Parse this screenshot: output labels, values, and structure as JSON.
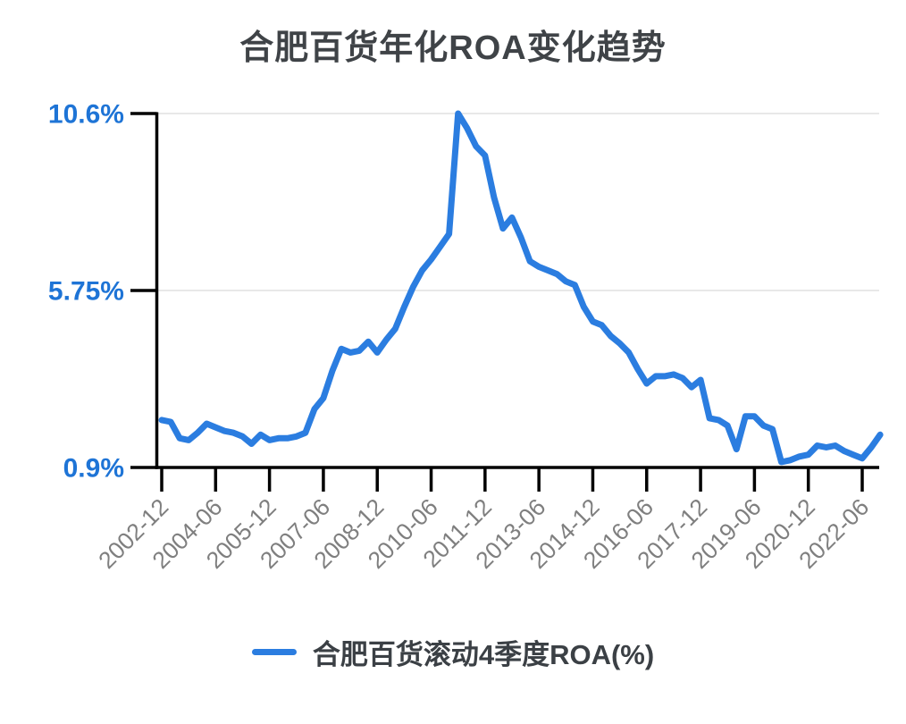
{
  "page": {
    "title": "合肥百货年化ROA变化趋势"
  },
  "legend": {
    "label": "合肥百货滚动4季度ROA(%)"
  },
  "colors": {
    "line_blue": "#2b7de0",
    "y_label_blue": "#1e74d6",
    "title_gray": "#3f4347",
    "x_label_gray": "#7f7f7f",
    "axis_black": "#000000",
    "gridline_gray": "#e8e8e8"
  },
  "chart_data": {
    "type": "line",
    "title": "合肥百货年化ROA变化趋势",
    "series_name": "合肥百货滚动4季度ROA(%)",
    "unit": "%",
    "grid": "horizontal gridlines at the 5.75% and 10.6% levels only",
    "legend_position": "bottom-center",
    "ylim": [
      0.9,
      10.6
    ],
    "y_tick_values": [
      10.6,
      5.75,
      0.9
    ],
    "y_tick_labels": [
      "10.6%",
      "5.75%",
      "0.9%"
    ],
    "x_tick_labels": [
      "2002-12",
      "2004-06",
      "2005-12",
      "2007-06",
      "2008-12",
      "2010-06",
      "2011-12",
      "2013-06",
      "2014-12",
      "2016-06",
      "2017-12",
      "2019-06",
      "2020-12",
      "2022-06"
    ],
    "x": [
      "2002-12",
      "2003-03",
      "2003-06",
      "2003-09",
      "2003-12",
      "2004-03",
      "2004-06",
      "2004-09",
      "2004-12",
      "2005-03",
      "2005-06",
      "2005-09",
      "2005-12",
      "2006-03",
      "2006-06",
      "2006-09",
      "2006-12",
      "2007-03",
      "2007-06",
      "2007-09",
      "2007-12",
      "2008-03",
      "2008-06",
      "2008-09",
      "2008-12",
      "2009-03",
      "2009-06",
      "2009-09",
      "2009-12",
      "2010-03",
      "2010-06",
      "2010-09",
      "2010-12",
      "2011-03",
      "2011-06",
      "2011-09",
      "2011-12",
      "2012-03",
      "2012-06",
      "2012-09",
      "2012-12",
      "2013-03",
      "2013-06",
      "2013-09",
      "2013-12",
      "2014-03",
      "2014-06",
      "2014-09",
      "2014-12",
      "2015-03",
      "2015-06",
      "2015-09",
      "2015-12",
      "2016-03",
      "2016-06",
      "2016-09",
      "2016-12",
      "2017-03",
      "2017-06",
      "2017-09",
      "2017-12",
      "2018-03",
      "2018-06",
      "2018-09",
      "2018-12",
      "2019-03",
      "2019-06",
      "2019-09",
      "2019-12",
      "2020-03",
      "2020-06",
      "2020-09",
      "2020-12",
      "2021-03",
      "2021-06",
      "2021-09",
      "2021-12",
      "2022-03",
      "2022-06",
      "2022-09",
      "2022-12"
    ],
    "values": [
      2.2,
      2.15,
      1.7,
      1.65,
      1.85,
      2.1,
      2.0,
      1.9,
      1.85,
      1.75,
      1.55,
      1.8,
      1.65,
      1.7,
      1.7,
      1.75,
      1.85,
      2.5,
      2.8,
      3.55,
      4.15,
      4.05,
      4.1,
      4.35,
      4.05,
      4.4,
      4.7,
      5.3,
      5.85,
      6.3,
      6.6,
      6.95,
      7.3,
      10.6,
      10.2,
      9.7,
      9.45,
      8.3,
      7.45,
      7.75,
      7.2,
      6.55,
      6.4,
      6.3,
      6.2,
      6.0,
      5.9,
      5.3,
      4.9,
      4.8,
      4.5,
      4.3,
      4.05,
      3.6,
      3.2,
      3.4,
      3.4,
      3.45,
      3.35,
      3.1,
      3.3,
      2.25,
      2.2,
      2.05,
      1.4,
      2.3,
      2.3,
      2.05,
      1.95,
      1.05,
      1.1,
      1.2,
      1.25,
      1.5,
      1.45,
      1.5,
      1.35,
      1.25,
      1.15,
      1.45,
      1.8
    ]
  }
}
